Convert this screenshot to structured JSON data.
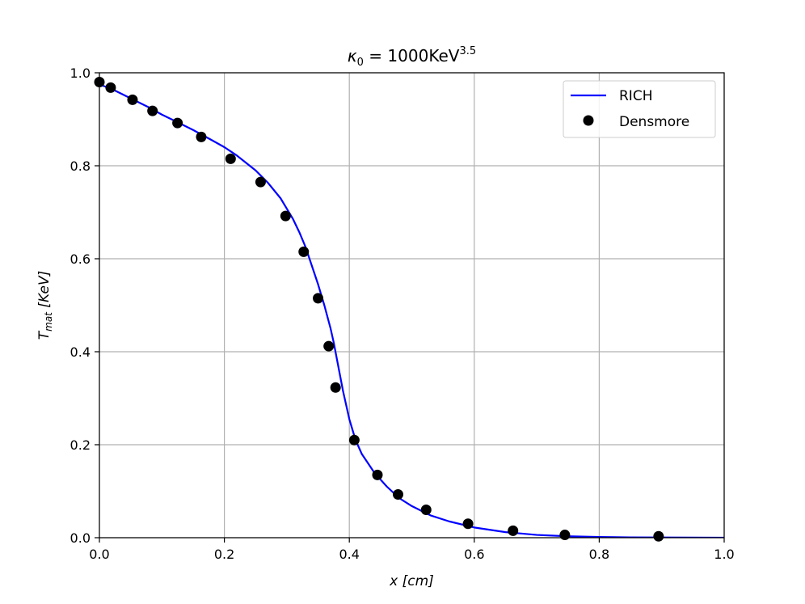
{
  "chart_data": {
    "type": "line",
    "title": {
      "prefix": "κ",
      "subscript": "0",
      "equals": " = ",
      "value": "1000KeV",
      "superscript": "3.5"
    },
    "xlabel": {
      "var": "x",
      "unit": " [cm]"
    },
    "ylabel": {
      "var": "T",
      "subscript": "mat",
      "unit": " [KeV]"
    },
    "xlim": [
      0,
      1
    ],
    "ylim": [
      0,
      1
    ],
    "xticks": [
      "0.0",
      "0.2",
      "0.4",
      "0.6",
      "0.8",
      "1.0"
    ],
    "yticks": [
      "0.0",
      "0.2",
      "0.4",
      "0.6",
      "0.8",
      "1.0"
    ],
    "grid": true,
    "legend_position": "top-right",
    "series": [
      {
        "name": "RICH",
        "kind": "line",
        "color": "#0000ff",
        "x": [
          0.0,
          0.02,
          0.05,
          0.08,
          0.1,
          0.12,
          0.15,
          0.18,
          0.2,
          0.22,
          0.25,
          0.27,
          0.29,
          0.31,
          0.32,
          0.33,
          0.34,
          0.35,
          0.36,
          0.37,
          0.375,
          0.38,
          0.385,
          0.39,
          0.395,
          0.4,
          0.41,
          0.42,
          0.44,
          0.46,
          0.48,
          0.5,
          0.53,
          0.56,
          0.6,
          0.65,
          0.7,
          0.75,
          0.8,
          0.85,
          0.9,
          0.95,
          1.0
        ],
        "y": [
          0.975,
          0.965,
          0.945,
          0.925,
          0.91,
          0.897,
          0.877,
          0.855,
          0.84,
          0.822,
          0.79,
          0.763,
          0.73,
          0.685,
          0.657,
          0.625,
          0.585,
          0.545,
          0.5,
          0.45,
          0.42,
          0.385,
          0.35,
          0.315,
          0.285,
          0.255,
          0.21,
          0.18,
          0.14,
          0.11,
          0.085,
          0.068,
          0.048,
          0.035,
          0.022,
          0.012,
          0.006,
          0.003,
          0.0015,
          0.0008,
          0.0004,
          0.0002,
          0.0001
        ]
      },
      {
        "name": "Densmore",
        "kind": "scatter",
        "color": "#000000",
        "x": [
          0.0,
          0.018,
          0.053,
          0.085,
          0.125,
          0.163,
          0.21,
          0.258,
          0.298,
          0.327,
          0.35,
          0.367,
          0.378,
          0.408,
          0.445,
          0.478,
          0.523,
          0.59,
          0.662,
          0.745,
          0.895
        ],
        "y": [
          0.98,
          0.968,
          0.942,
          0.918,
          0.892,
          0.862,
          0.815,
          0.765,
          0.692,
          0.615,
          0.515,
          0.412,
          0.323,
          0.21,
          0.135,
          0.093,
          0.06,
          0.03,
          0.015,
          0.006,
          0.003
        ]
      }
    ]
  }
}
